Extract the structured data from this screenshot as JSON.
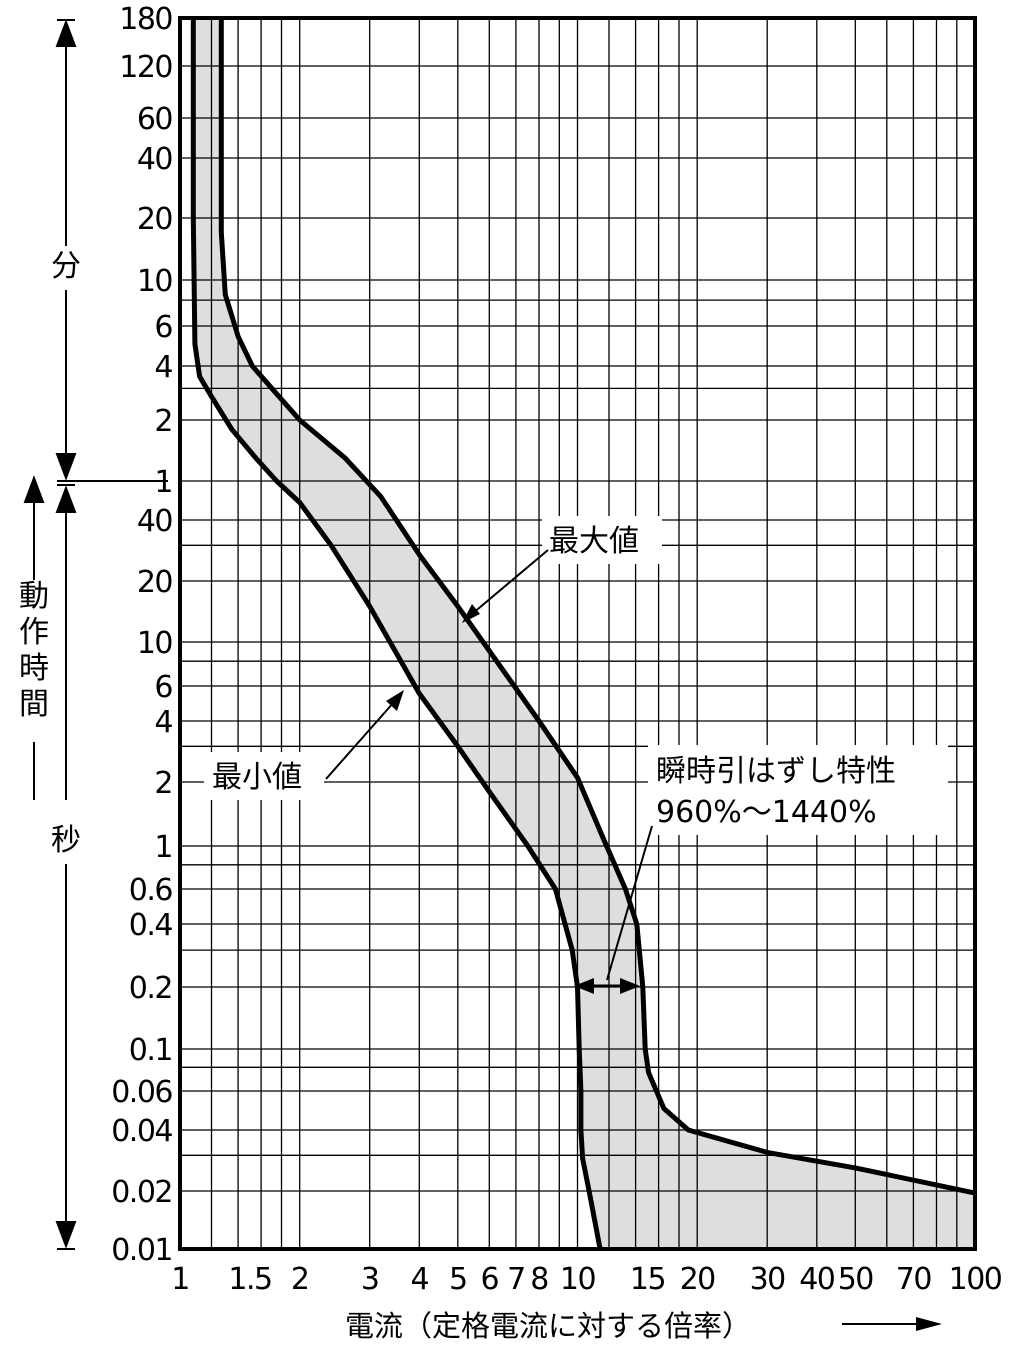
{
  "chart_data": {
    "type": "area",
    "x_scale": "log",
    "y_scale": "log",
    "x_range": [
      1,
      100
    ],
    "x_ticks": [
      "1",
      "1.5",
      "2",
      "3",
      "4",
      "5",
      "6",
      "7",
      "8",
      "10",
      "15",
      "20",
      "30",
      "40",
      "50",
      "70",
      "100"
    ],
    "x_tick_values": [
      1,
      1.5,
      2,
      3,
      4,
      5,
      6,
      7,
      8,
      10,
      15,
      20,
      30,
      40,
      50,
      70,
      100
    ],
    "xlabel": "電流（定格電流に対する倍率）",
    "y_minutes_ticks": [
      "180",
      "120",
      "60",
      "40",
      "20",
      "10",
      "6",
      "4",
      "2",
      "1"
    ],
    "y_minutes_values": [
      180,
      120,
      60,
      40,
      20,
      10,
      6,
      4,
      2,
      1
    ],
    "y_seconds_ticks": [
      "40",
      "20",
      "10",
      "6",
      "4",
      "2",
      "1",
      "0.6",
      "0.4",
      "0.2",
      "0.1",
      "0.06",
      "0.04",
      "0.02",
      "0.01"
    ],
    "y_seconds_values": [
      40,
      20,
      10,
      6,
      4,
      2,
      1,
      0.6,
      0.4,
      0.2,
      0.1,
      0.06,
      0.04,
      0.02,
      0.01
    ],
    "y_unit_minutes": "分",
    "y_unit_seconds": "秒",
    "ylabel": "動作時間",
    "grid": true,
    "series": [
      {
        "name": "最大値",
        "x_y_seconds": [
          [
            1.27,
            10800
          ],
          [
            1.27,
            1020
          ],
          [
            1.3,
            510
          ],
          [
            1.4,
            324
          ],
          [
            1.52,
            240
          ],
          [
            1.75,
            168
          ],
          [
            2.0,
            120
          ],
          [
            2.6,
            78
          ],
          [
            3.2,
            51
          ],
          [
            4.0,
            27
          ],
          [
            5.0,
            15
          ],
          [
            6.5,
            7.2
          ],
          [
            8.0,
            4.0
          ],
          [
            10.0,
            2.1
          ],
          [
            11.7,
            1.05
          ],
          [
            13.2,
            0.6
          ],
          [
            14.1,
            0.4
          ],
          [
            14.6,
            0.2
          ],
          [
            14.8,
            0.1
          ],
          [
            15.1,
            0.075
          ],
          [
            16.5,
            0.05
          ],
          [
            19.0,
            0.04
          ],
          [
            30.0,
            0.031
          ],
          [
            50.0,
            0.026
          ],
          [
            100.0,
            0.0195
          ]
        ]
      },
      {
        "name": "最小値",
        "x_y_seconds": [
          [
            1.08,
            10800
          ],
          [
            1.08,
            1200
          ],
          [
            1.09,
            300
          ],
          [
            1.12,
            210
          ],
          [
            1.2,
            162
          ],
          [
            1.35,
            108
          ],
          [
            1.55,
            78
          ],
          [
            1.75,
            60
          ],
          [
            2.0,
            48
          ],
          [
            2.4,
            30
          ],
          [
            3.0,
            15
          ],
          [
            4.0,
            5.5
          ],
          [
            5.0,
            3.0
          ],
          [
            6.0,
            1.8
          ],
          [
            7.5,
            1.0
          ],
          [
            8.8,
            0.6
          ],
          [
            9.7,
            0.3
          ],
          [
            10.0,
            0.2
          ],
          [
            10.1,
            0.1
          ],
          [
            10.2,
            0.06
          ],
          [
            10.2,
            0.04
          ],
          [
            10.3,
            0.029
          ],
          [
            10.8,
            0.018
          ],
          [
            11.4,
            0.01
          ]
        ]
      }
    ],
    "annotations": [
      {
        "text": "最大値",
        "points_to": [
          5.0,
          11
        ]
      },
      {
        "text": "最小値",
        "points_to": [
          4.0,
          5.2
        ]
      },
      {
        "text": "瞬時引はずし特性",
        "text2": "960%〜1440%",
        "span_x": [
          10.0,
          14.6
        ],
        "at_y": 0.2
      }
    ]
  }
}
